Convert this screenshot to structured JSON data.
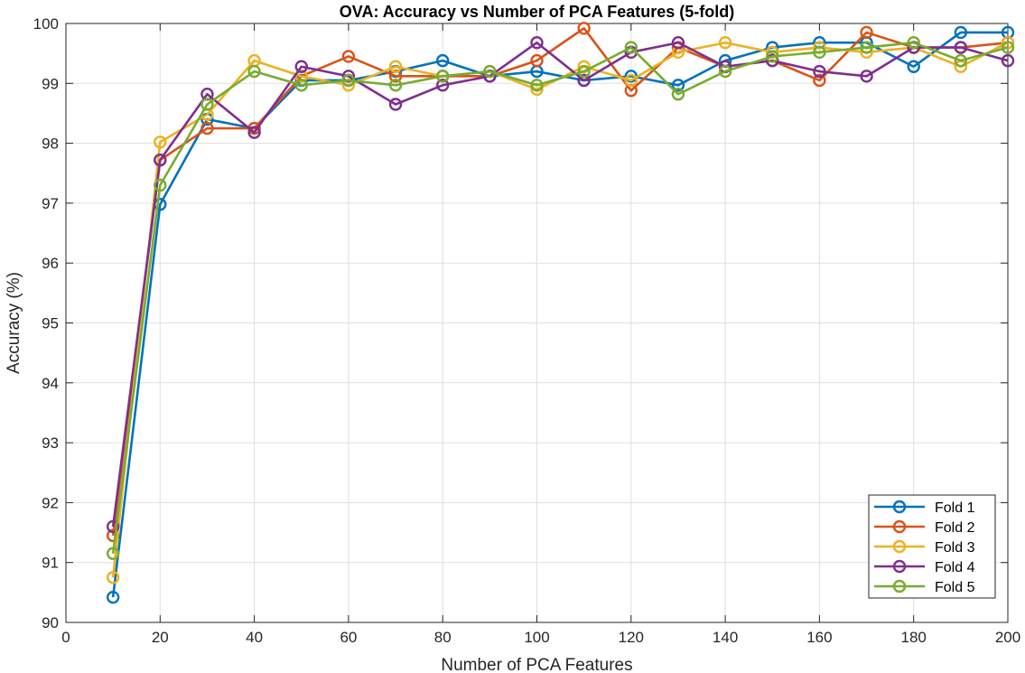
{
  "chart_data": {
    "type": "line",
    "title": "OVA: Accuracy vs Number of PCA Features (5-fold)",
    "xlabel": "Number of PCA Features",
    "ylabel": "Accuracy (%)",
    "xlim": [
      0,
      200
    ],
    "ylim": [
      90,
      100
    ],
    "xticks": [
      0,
      20,
      40,
      60,
      80,
      100,
      120,
      140,
      160,
      180,
      200
    ],
    "yticks": [
      90,
      91,
      92,
      93,
      94,
      95,
      96,
      97,
      98,
      99,
      100
    ],
    "grid": true,
    "legend_position": "bottom-right",
    "marker": "open-circle",
    "x": [
      10,
      20,
      30,
      40,
      50,
      60,
      70,
      80,
      90,
      100,
      110,
      120,
      130,
      140,
      150,
      160,
      170,
      180,
      190,
      200
    ],
    "series": [
      {
        "name": "Fold 1",
        "color": "#0072BD",
        "values": [
          90.42,
          96.98,
          98.4,
          98.25,
          99.05,
          99.05,
          99.2,
          99.38,
          99.12,
          99.2,
          99.05,
          99.12,
          98.97,
          99.38,
          99.6,
          99.68,
          99.68,
          99.28,
          99.85,
          99.85
        ]
      },
      {
        "name": "Fold 2",
        "color": "#D95319",
        "values": [
          91.45,
          97.72,
          98.25,
          98.25,
          99.12,
          99.45,
          99.12,
          99.12,
          99.12,
          99.38,
          99.92,
          98.88,
          99.6,
          99.28,
          99.38,
          99.05,
          99.85,
          99.6,
          99.6,
          99.68
        ]
      },
      {
        "name": "Fold 3",
        "color": "#EDB120",
        "values": [
          90.75,
          98.02,
          98.48,
          99.38,
          99.12,
          98.97,
          99.28,
          99.12,
          99.2,
          98.9,
          99.28,
          99.05,
          99.52,
          99.68,
          99.52,
          99.6,
          99.52,
          99.6,
          99.28,
          99.68
        ]
      },
      {
        "name": "Fold 4",
        "color": "#7E2F8E",
        "values": [
          91.6,
          97.72,
          98.82,
          98.18,
          99.28,
          99.12,
          98.65,
          98.97,
          99.12,
          99.68,
          99.05,
          99.52,
          99.68,
          99.28,
          99.38,
          99.2,
          99.12,
          99.6,
          99.6,
          99.38
        ]
      },
      {
        "name": "Fold 5",
        "color": "#77AC30",
        "values": [
          91.15,
          97.3,
          98.65,
          99.2,
          98.97,
          99.05,
          98.97,
          99.12,
          99.2,
          98.97,
          99.2,
          99.6,
          98.82,
          99.2,
          99.45,
          99.52,
          99.6,
          99.68,
          99.38,
          99.6
        ]
      }
    ]
  }
}
